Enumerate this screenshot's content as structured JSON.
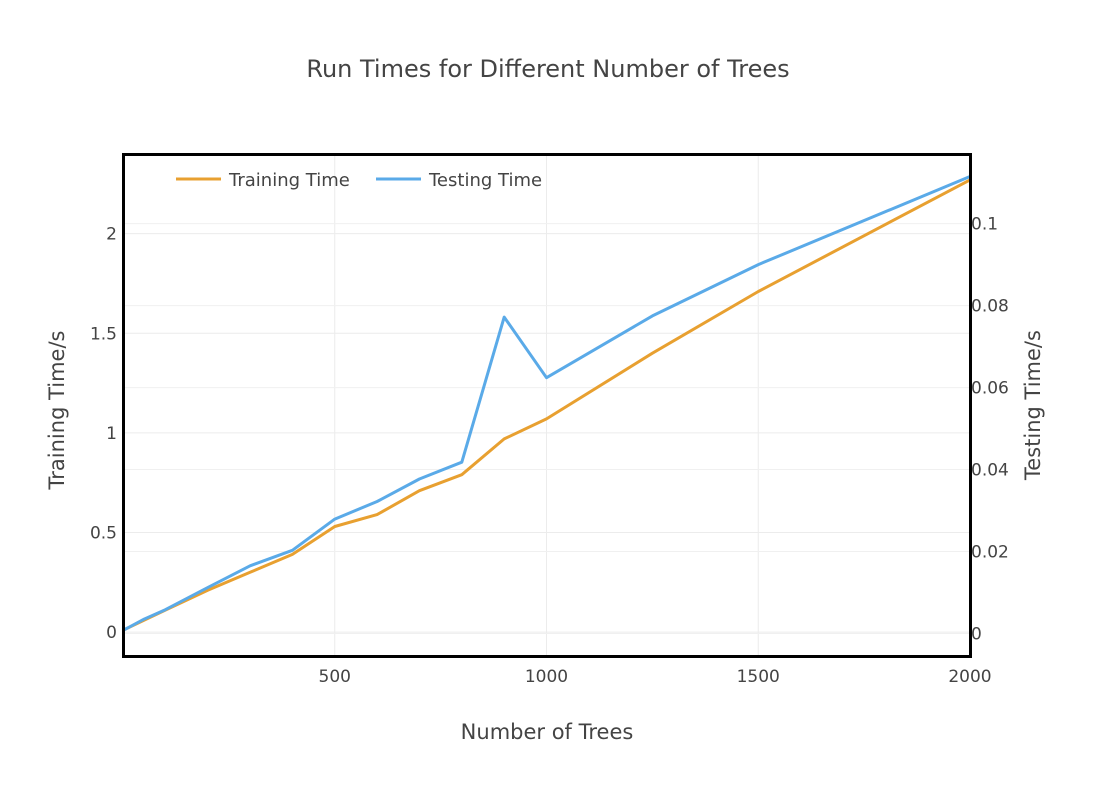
{
  "chart_data": {
    "type": "line",
    "title": "Run Times for Different Number of Trees",
    "xlabel": "Number of Trees",
    "ylabel": "Training Time/s",
    "y2label": "Testing Time/s",
    "xlim": [
      0,
      2000
    ],
    "ylim": [
      -0.12,
      2.4
    ],
    "y2lim": [
      -0.0055,
      0.117
    ],
    "x_ticks": [
      500,
      1000,
      1500,
      2000
    ],
    "x_tick_labels": [
      "500",
      "1000",
      "1500",
      "2000"
    ],
    "y_ticks": [
      0,
      0.5,
      1,
      1.5,
      2
    ],
    "y_tick_labels": [
      "0",
      "0.5",
      "1",
      "1.5",
      "2"
    ],
    "y2_ticks": [
      0,
      0.02,
      0.04,
      0.06,
      0.08,
      0.1
    ],
    "y2_tick_labels": [
      "0",
      "0.02",
      "0.04",
      "0.06",
      "0.08",
      "0.1"
    ],
    "grid": true,
    "legend_position": "top-left",
    "series": [
      {
        "name": "Training Time",
        "axis": "y",
        "color": "#e8a030",
        "x": [
          1,
          50,
          100,
          200,
          300,
          400,
          500,
          600,
          700,
          800,
          900,
          1000,
          1250,
          1500,
          2000
        ],
        "values": [
          0.01,
          0.06,
          0.11,
          0.21,
          0.3,
          0.39,
          0.53,
          0.59,
          0.71,
          0.79,
          0.97,
          1.07,
          1.4,
          1.71,
          2.27
        ]
      },
      {
        "name": "Testing Time",
        "axis": "y2",
        "color": "#5aaae8",
        "x": [
          1,
          50,
          100,
          200,
          300,
          400,
          500,
          600,
          700,
          800,
          900,
          1000,
          1250,
          1500,
          2000
        ],
        "values": [
          0.0008,
          0.0035,
          0.0058,
          0.0112,
          0.0165,
          0.0203,
          0.0279,
          0.0322,
          0.0377,
          0.0418,
          0.0772,
          0.0624,
          0.0775,
          0.09,
          0.1115
        ]
      }
    ]
  }
}
